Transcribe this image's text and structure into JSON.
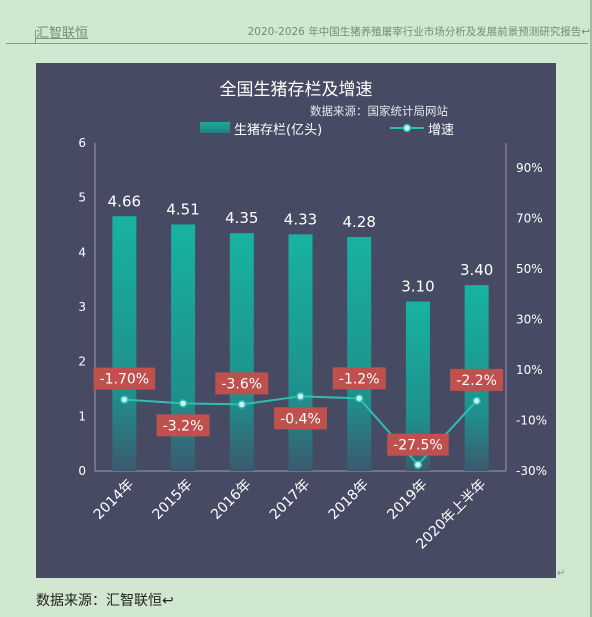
{
  "header": {
    "left_text": "汇智联恒",
    "right_text": "2020-2026 年中国生猪养殖屠宰行业市场分析及发展前景预测研究报告↩"
  },
  "chart_data": {
    "type": "bar",
    "title": "全国生猪存栏及增速",
    "source_note": "数据来源：国家统计局网站",
    "categories": [
      "2014年",
      "2015年",
      "2016年",
      "2017年",
      "2018年",
      "2019年",
      "2020年上半年"
    ],
    "series": [
      {
        "name": "生猪存栏(亿头)",
        "type": "bar",
        "axis": "left",
        "values": [
          4.66,
          4.51,
          4.35,
          4.33,
          4.28,
          3.1,
          3.4
        ],
        "labels": [
          "4.66",
          "4.51",
          "4.35",
          "4.33",
          "4.28",
          "3.10",
          "3.40"
        ]
      },
      {
        "name": "增速",
        "type": "line",
        "axis": "right",
        "values": [
          -1.7,
          -3.2,
          -3.6,
          -0.4,
          -1.2,
          -27.5,
          -2.2
        ],
        "labels": [
          "-1.70%",
          "-3.2%",
          "-3.6%",
          "-0.4%",
          "-1.2%",
          "-27.5%",
          "-2.2%"
        ]
      }
    ],
    "y_left": {
      "ylim": [
        0,
        6
      ],
      "ticks": [
        "0",
        "1",
        "2",
        "3",
        "4",
        "5",
        "6"
      ]
    },
    "y_right": {
      "ylim": [
        -30,
        100
      ],
      "ticks": [
        "-30%",
        "-10%",
        "10%",
        "30%",
        "50%",
        "70%",
        "90%"
      ],
      "tick_values": [
        -30,
        -10,
        10,
        30,
        50,
        70,
        90
      ]
    },
    "legend_position": "top",
    "grid": false,
    "colors": {
      "panel": "#474a63",
      "bar_top": "#17b3a0",
      "bar_bottom": "#3b5a6e",
      "line": "#2cc0b0",
      "label_box": "#c0504d",
      "text": "#ffffff"
    }
  },
  "footer": {
    "text": "数据来源：汇智联恒↩"
  }
}
